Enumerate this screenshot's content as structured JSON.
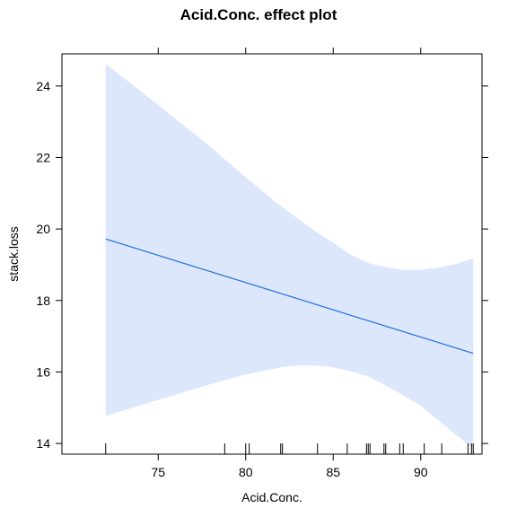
{
  "chart_data": {
    "type": "line",
    "title": "Acid.Conc. effect plot",
    "xlabel": "Acid.Conc.",
    "ylabel": "stack.loss",
    "xlim": [
      69.5,
      93.5
    ],
    "ylim": [
      13.7,
      24.9
    ],
    "x_ticks": [
      75,
      80,
      85,
      90
    ],
    "y_ticks": [
      14,
      16,
      18,
      20,
      22,
      24
    ],
    "x_tick_labels": [
      "75",
      "80",
      "85",
      "90"
    ],
    "y_tick_labels": [
      "14",
      "16",
      "18",
      "20",
      "22",
      "24"
    ],
    "fit_color": "#1f6fe0",
    "band_color": "#dce7fb",
    "series": [
      {
        "type": "line",
        "x": [
          72,
          93
        ],
        "y": [
          19.72,
          16.52
        ]
      }
    ],
    "confidence_band": {
      "x": [
        72,
        75,
        78,
        80,
        82,
        83,
        84,
        85,
        86,
        87,
        88,
        89,
        90,
        91,
        92,
        93
      ],
      "upper": [
        24.62,
        23.47,
        22.29,
        21.45,
        20.64,
        20.28,
        19.93,
        19.62,
        19.28,
        19.05,
        18.93,
        18.86,
        18.86,
        18.92,
        19.02,
        19.18
      ],
      "lower": [
        14.77,
        15.22,
        15.66,
        15.93,
        16.13,
        16.18,
        16.18,
        16.13,
        16.02,
        15.88,
        15.62,
        15.35,
        15.05,
        14.65,
        14.25,
        13.85
      ]
    },
    "rug": [
      72,
      78.8,
      80,
      80.2,
      82.0,
      82.1,
      84.1,
      85.8,
      86.9,
      87.0,
      87.1,
      87.9,
      88.0,
      88.8,
      89.0,
      90.2,
      91.2,
      92.7,
      92.9,
      93.0
    ]
  }
}
